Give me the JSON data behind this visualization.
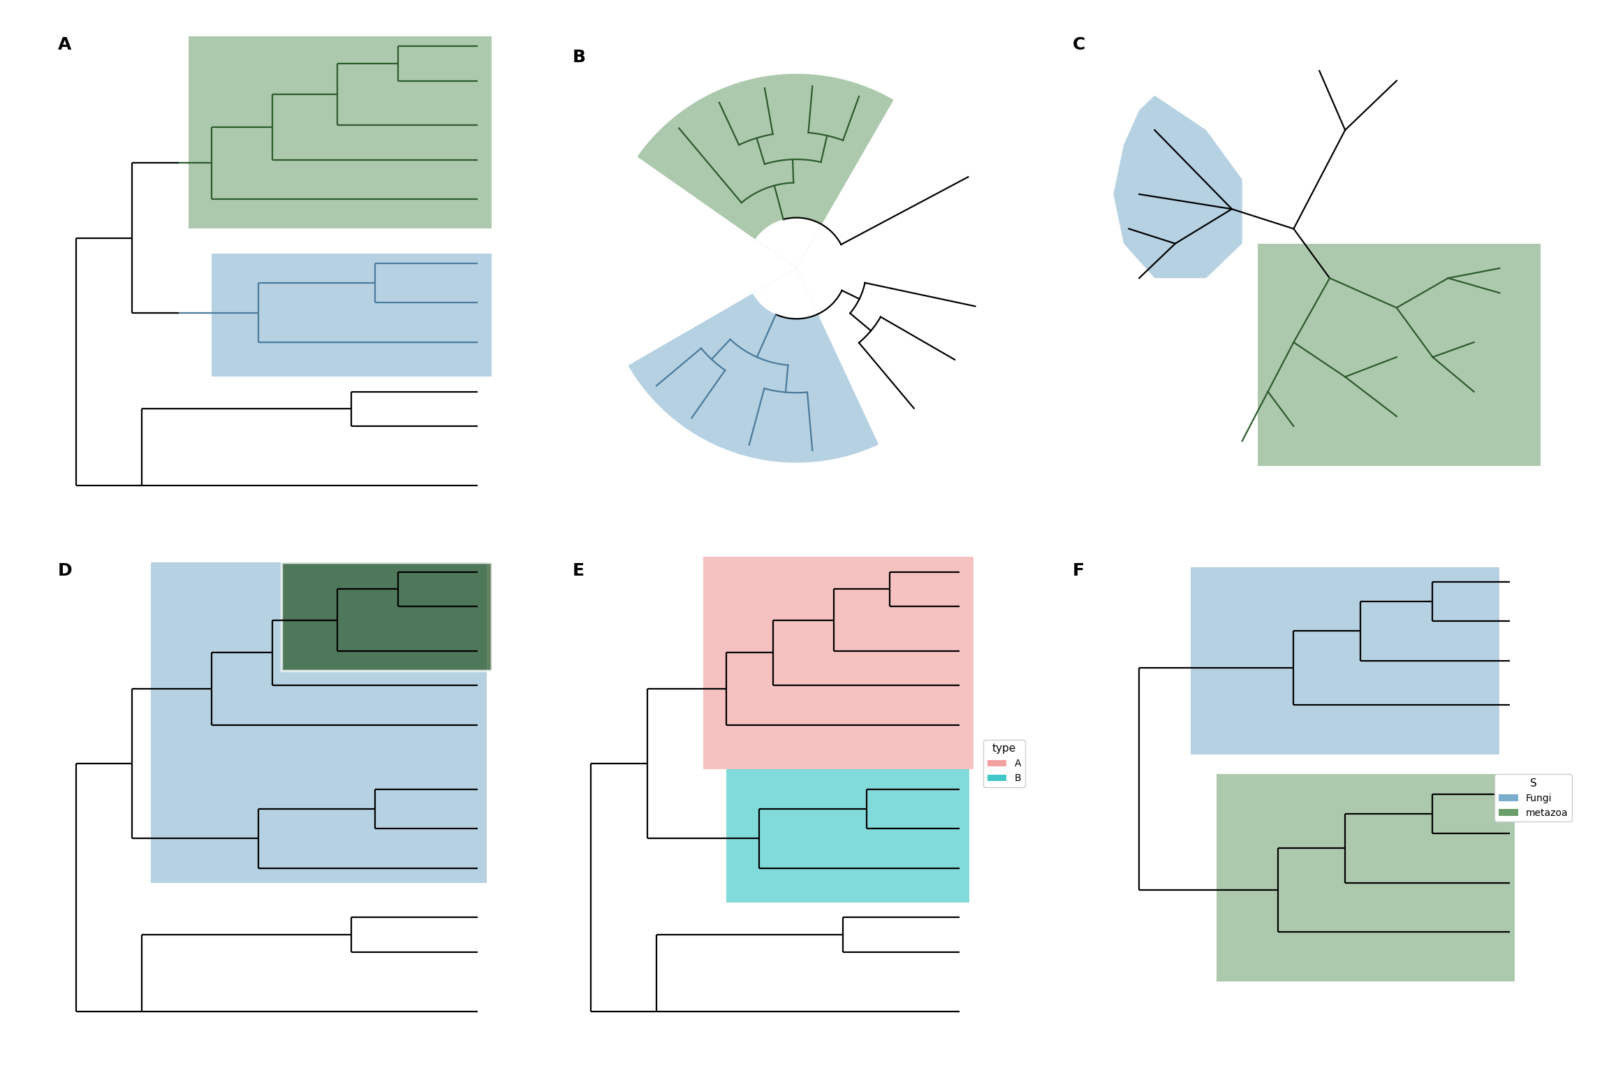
{
  "green_fill": "#6a9e6a",
  "blue_fill": "#7aaccb",
  "dark_green": "#2d5a2d",
  "pink_fill": "#f2a0a0",
  "cyan_fill": "#40c8c8",
  "white": "#ffffff",
  "black": "#000000",
  "blue_line": "#4a7a9b",
  "green_line": "#2d5a2d",
  "panel_labels": [
    "A",
    "B",
    "C",
    "D",
    "E",
    "F"
  ],
  "label_fontsize": 18,
  "tree_lw": 1.6,
  "highlight_alpha": 0.55,
  "legend_E_title": "type",
  "legend_E_items": [
    "A",
    "B"
  ],
  "legend_E_colors": [
    "#f2a0a0",
    "#40c8c8"
  ],
  "legend_F_title": "S",
  "legend_F_items": [
    "Fungi",
    "metazoa"
  ],
  "legend_F_colors": [
    "#7aaccb",
    "#6a9e6a"
  ]
}
